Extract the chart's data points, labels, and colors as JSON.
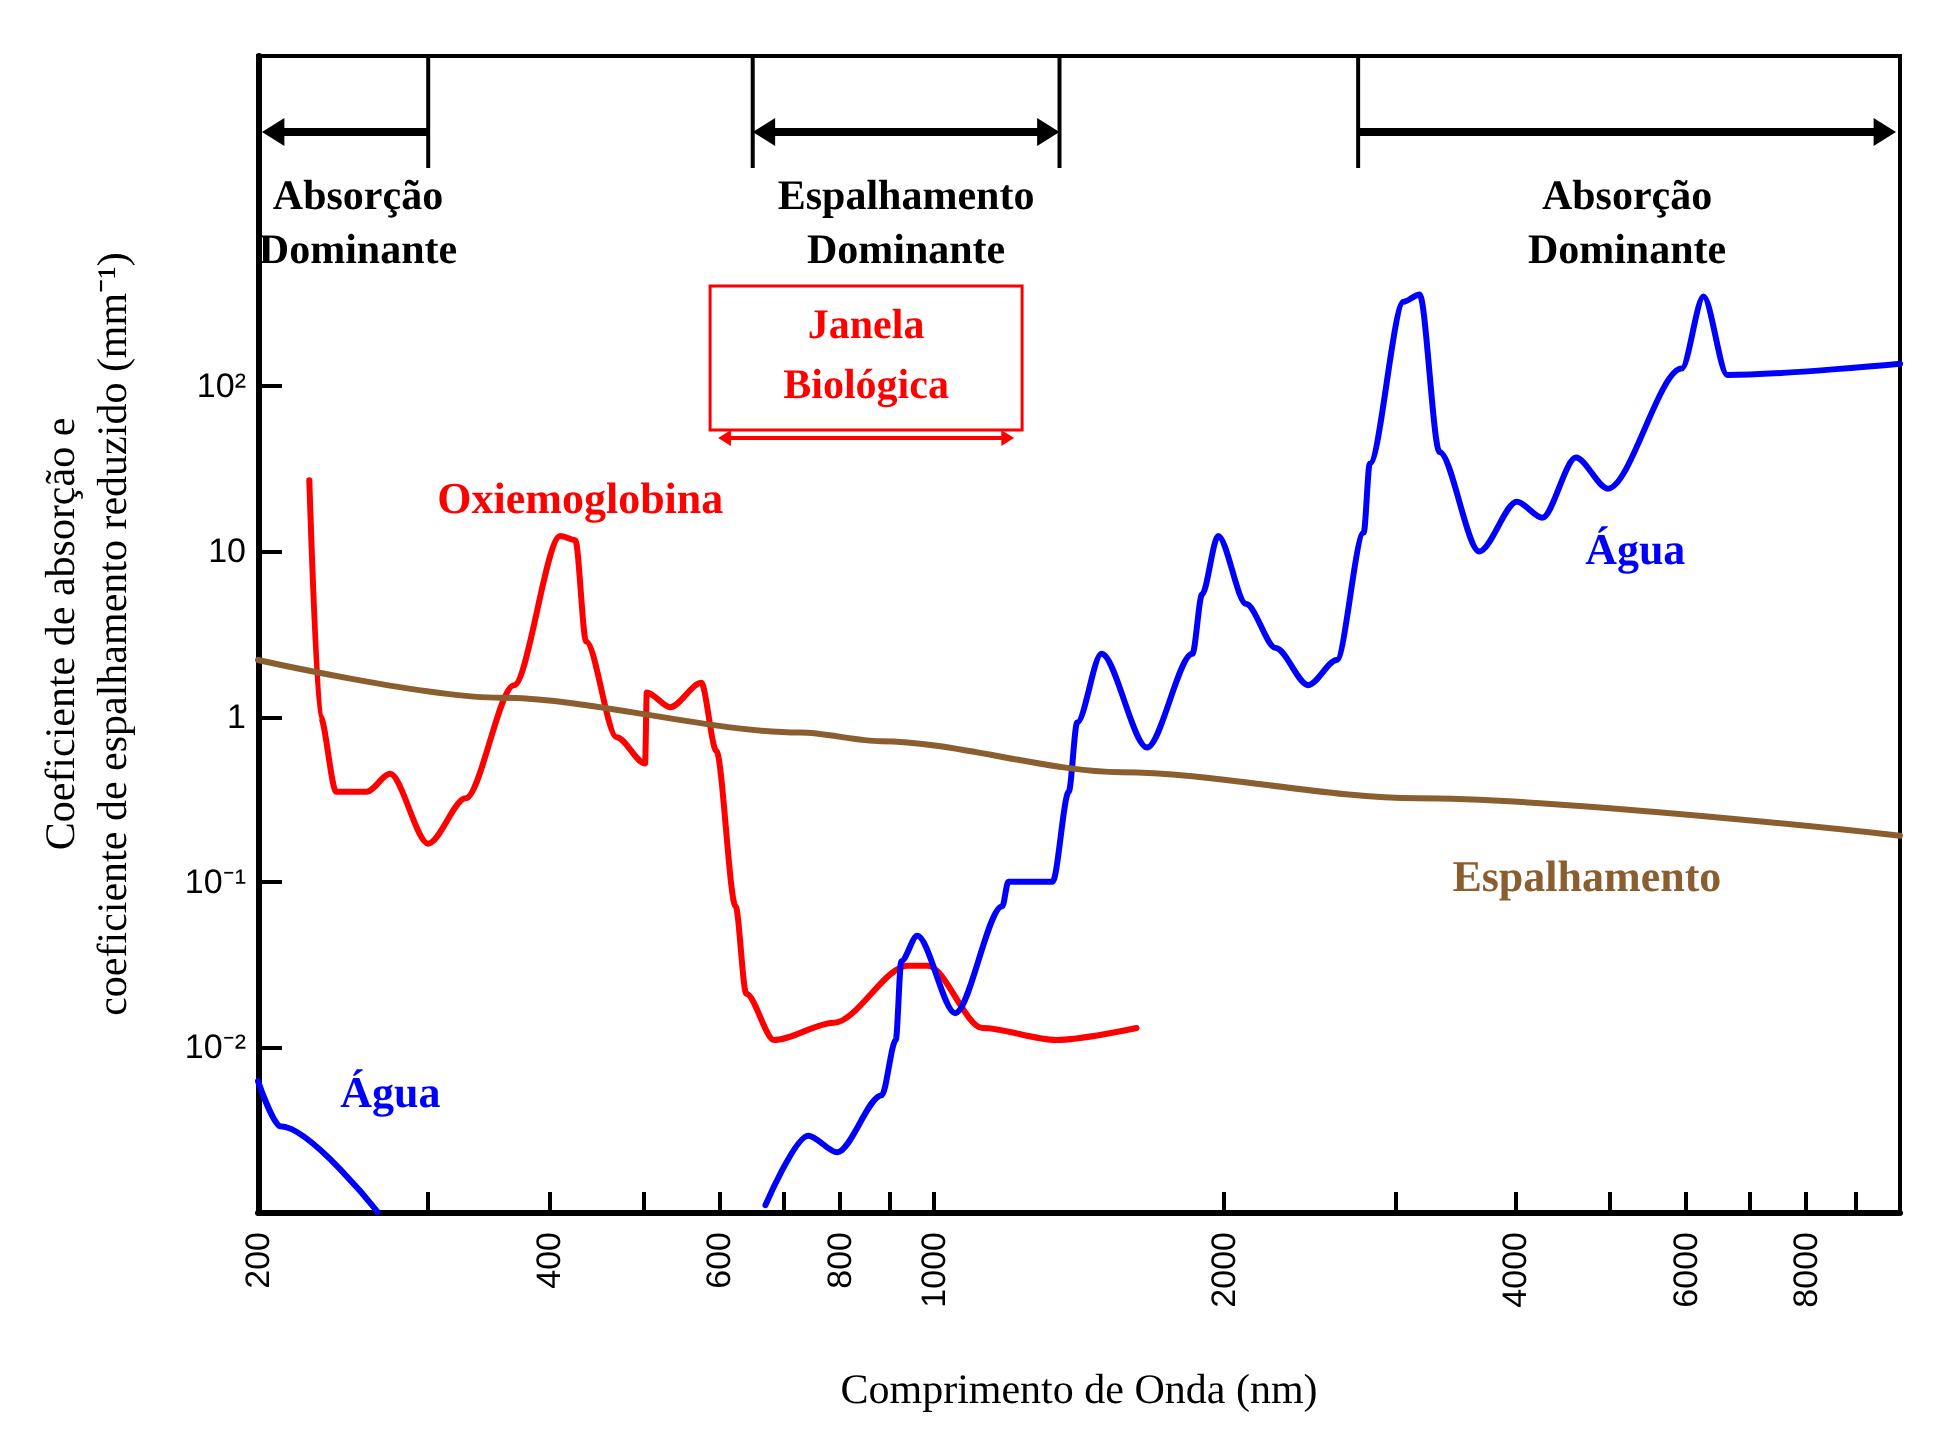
{
  "chart_data": {
    "type": "line",
    "xlabel": "Comprimento de Onda (nm)",
    "ylabel": "Coeficiente de absorção e\ncoeficiente de espalhamento reduzido (mm⁻¹)",
    "log": "xy",
    "grid": false,
    "marker": "none",
    "line_style": "solid",
    "xlim": [
      200,
      10000
    ],
    "xticks": [
      200,
      {
        "value": 300,
        "label": null
      },
      400,
      {
        "value": 500,
        "label": null
      },
      600,
      {
        "value": 700,
        "label": null
      },
      800,
      {
        "value": 900,
        "label": null
      },
      1000,
      2000,
      {
        "value": 3000,
        "label": null
      },
      4000,
      {
        "value": 5000,
        "label": null
      },
      6000,
      {
        "value": 7000,
        "label": null
      },
      8000,
      {
        "value": 9000,
        "label": null
      }
    ],
    "ylim": [
      0.001,
      10000
    ],
    "yticks": [
      {
        "value": 0.01,
        "label": "10⁻²"
      },
      {
        "value": 0.1,
        "label": "10⁻¹"
      },
      1,
      10,
      {
        "value": 100,
        "label": "10²"
      }
    ],
    "series": [
      {
        "name": "Oxiemoglobina",
        "color": "#ff0000",
        "x": [
          226,
          232,
          241,
          259,
          274,
          300,
          328,
          368,
          411,
          426,
          437,
          470,
          503,
          505,
          534,
          575,
          596,
          624,
          640,
          684,
          789,
          940,
          987,
          1124,
          1340,
          1622
        ],
        "values": [
          27,
          1,
          0.35,
          0.35,
          0.45,
          0.17,
          0.32,
          1.55,
          12.4,
          11.7,
          2.85,
          0.75,
          0.52,
          1.4,
          1.14,
          1.6,
          0.62,
          0.071,
          0.021,
          0.011,
          0.014,
          0.031,
          0.031,
          0.013,
          0.011,
          0.013
        ]
      },
      {
        "name": "Água",
        "color": "#0000ff",
        "x": [
          200,
          211,
          266
        ],
        "values": [
          0.0062,
          0.0033,
          0.001
        ]
      },
      {
        "name": "Água",
        "color": "#0000ff",
        "x": [
          670,
          742,
          795,
          884,
          914,
          926,
          962,
          1053,
          1178,
          1195,
          1328,
          1380,
          1408,
          1492,
          1663,
          1853,
          1896,
          1970,
          2106,
          2260,
          2442,
          2613,
          2787,
          2827,
          3065,
          3184,
          3338,
          3670,
          4014,
          4265,
          4620,
          4985,
          5945,
          6262,
          6626,
          10000
        ],
        "values": [
          0.0011,
          0.0029,
          0.0023,
          0.0051,
          0.011,
          0.033,
          0.047,
          0.016,
          0.071,
          0.1,
          0.1,
          0.35,
          0.92,
          2.4,
          0.65,
          2.4,
          5.5,
          12.4,
          4.8,
          2.6,
          1.55,
          2.2,
          13,
          34,
          325,
          360,
          40,
          10,
          20,
          16,
          37,
          24,
          128,
          350,
          117,
          137
        ]
      },
      {
        "name": "Espalhamento",
        "color": "#8b5e2f",
        "x": [
          200,
          356,
          728,
          882,
          1565,
          3163,
          10000
        ],
        "values": [
          2.2,
          1.3,
          0.8,
          0.71,
          0.46,
          0.32,
          0.19
        ]
      }
    ],
    "ref_lines": [
      {
        "axis": "x",
        "value": 300,
        "color": "#000000"
      },
      {
        "axis": "x",
        "value": 650,
        "color": "#000000"
      },
      {
        "axis": "x",
        "value": 1350,
        "color": "#000000"
      },
      {
        "axis": "x",
        "value": 2750,
        "color": "#000000"
      }
    ],
    "annotations": [
      "Absorção Dominante",
      "Espalhamento Dominante",
      "Absorção Dominante",
      "Janela Biológica"
    ]
  }
}
